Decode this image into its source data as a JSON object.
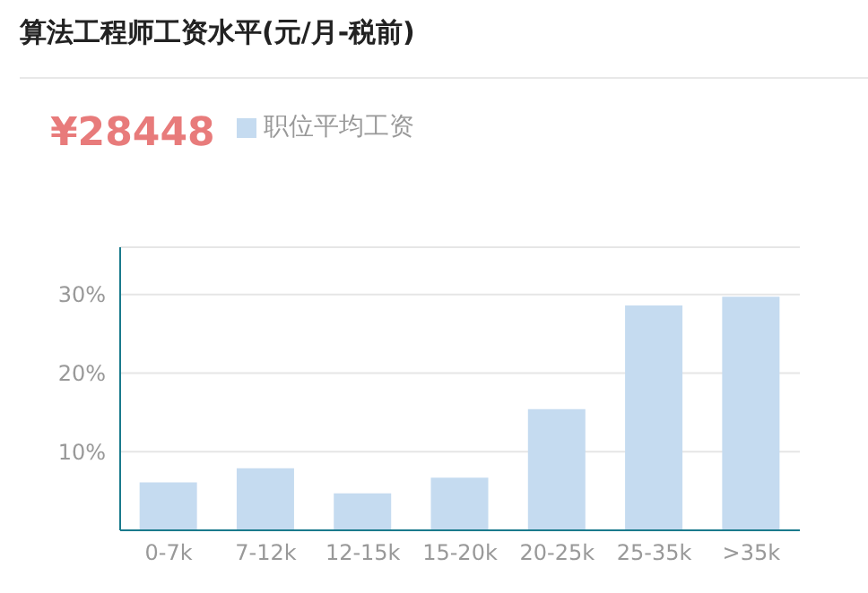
{
  "chart_data": {
    "type": "bar",
    "title": "算法工程师工资水平(元/月-税前)",
    "annotations": [
      "¥28448"
    ],
    "categories": [
      "0-7k",
      "7-12k",
      "12-15k",
      "15-20k",
      "20-25k",
      "25-35k",
      ">35k"
    ],
    "series": [
      {
        "name": "职位平均工资",
        "color": "#c5dbf0",
        "values": [
          6.1,
          7.9,
          4.7,
          6.7,
          15.4,
          28.6,
          29.7
        ]
      }
    ],
    "ylim": [
      0,
      36
    ],
    "yticks": [
      {
        "value": 0,
        "label": null
      },
      {
        "value": 10,
        "label": "10%"
      },
      {
        "value": 20,
        "label": "20%"
      },
      {
        "value": 30,
        "label": "30%"
      }
    ],
    "grid": "y",
    "legend": "top"
  }
}
